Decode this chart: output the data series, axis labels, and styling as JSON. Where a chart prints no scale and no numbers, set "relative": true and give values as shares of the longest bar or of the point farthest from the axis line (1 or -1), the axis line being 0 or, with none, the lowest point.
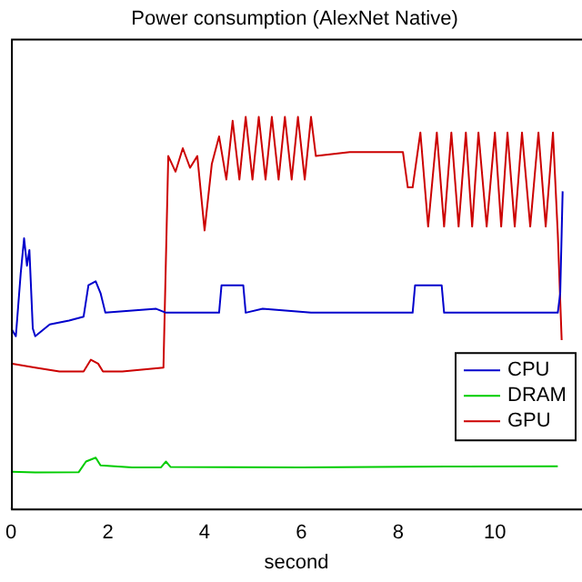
{
  "chart_data": {
    "type": "line",
    "title": "Power consumption (AlexNet Native)",
    "xlabel": "second",
    "relative": true,
    "xlim": [
      0,
      11.8
    ],
    "xticks": [
      0,
      2,
      4,
      6,
      8,
      10
    ],
    "grid": false,
    "legend": "right",
    "marker": "none",
    "line_style": "solid",
    "series": [
      {
        "name": "CPU",
        "color": "#0000cc",
        "x": [
          0,
          0.1,
          0.2,
          0.27,
          0.33,
          0.38,
          0.45,
          0.5,
          0.8,
          1.2,
          1.5,
          1.6,
          1.75,
          1.85,
          1.95,
          3.0,
          3.2,
          4.3,
          4.35,
          4.8,
          4.85,
          5.2,
          6.2,
          8.3,
          8.35,
          8.9,
          8.95,
          10,
          11.3,
          11.35,
          11.4
        ],
        "values": [
          0.46,
          0.44,
          0.6,
          0.69,
          0.62,
          0.66,
          0.46,
          0.44,
          0.47,
          0.48,
          0.49,
          0.57,
          0.58,
          0.55,
          0.5,
          0.51,
          0.5,
          0.5,
          0.57,
          0.57,
          0.5,
          0.51,
          0.5,
          0.5,
          0.57,
          0.57,
          0.5,
          0.5,
          0.5,
          0.55,
          0.81
        ]
      },
      {
        "name": "DRAM",
        "color": "#00cc00",
        "x": [
          0,
          0.5,
          1.4,
          1.55,
          1.75,
          1.85,
          2.5,
          3.1,
          3.2,
          3.3,
          6,
          9,
          11.3
        ],
        "values": [
          0.094,
          0.092,
          0.093,
          0.12,
          0.13,
          0.11,
          0.105,
          0.105,
          0.12,
          0.106,
          0.105,
          0.107,
          0.108
        ]
      },
      {
        "name": "GPU",
        "color": "#cc0000",
        "x": [
          0,
          0.5,
          1.0,
          1.5,
          1.65,
          1.8,
          1.9,
          2.3,
          3.15,
          3.25,
          3.4,
          3.55,
          3.7,
          3.85,
          4.0,
          4.15,
          4.3,
          4.45,
          4.58,
          4.72,
          4.85,
          4.99,
          5.12,
          5.26,
          5.39,
          5.53,
          5.66,
          5.8,
          5.93,
          6.07,
          6.2,
          6.3,
          7.0,
          7.5,
          8.1,
          8.2,
          8.3,
          8.46,
          8.62,
          8.8,
          8.95,
          9.1,
          9.25,
          9.4,
          9.53,
          9.66,
          9.83,
          10.0,
          10.13,
          10.26,
          10.41,
          10.56,
          10.73,
          10.9,
          11.05,
          11.2,
          11.3,
          11.38
        ],
        "values": [
          0.37,
          0.36,
          0.35,
          0.35,
          0.38,
          0.37,
          0.35,
          0.35,
          0.36,
          0.9,
          0.86,
          0.92,
          0.87,
          0.9,
          0.71,
          0.88,
          0.95,
          0.84,
          0.99,
          0.84,
          1.0,
          0.84,
          1.0,
          0.84,
          1.0,
          0.84,
          1.0,
          0.84,
          1.0,
          0.84,
          1.0,
          0.9,
          0.91,
          0.91,
          0.91,
          0.82,
          0.82,
          0.96,
          0.72,
          0.96,
          0.72,
          0.96,
          0.72,
          0.96,
          0.72,
          0.96,
          0.72,
          0.96,
          0.72,
          0.96,
          0.72,
          0.96,
          0.72,
          0.96,
          0.72,
          0.96,
          0.7,
          0.43
        ]
      }
    ]
  }
}
